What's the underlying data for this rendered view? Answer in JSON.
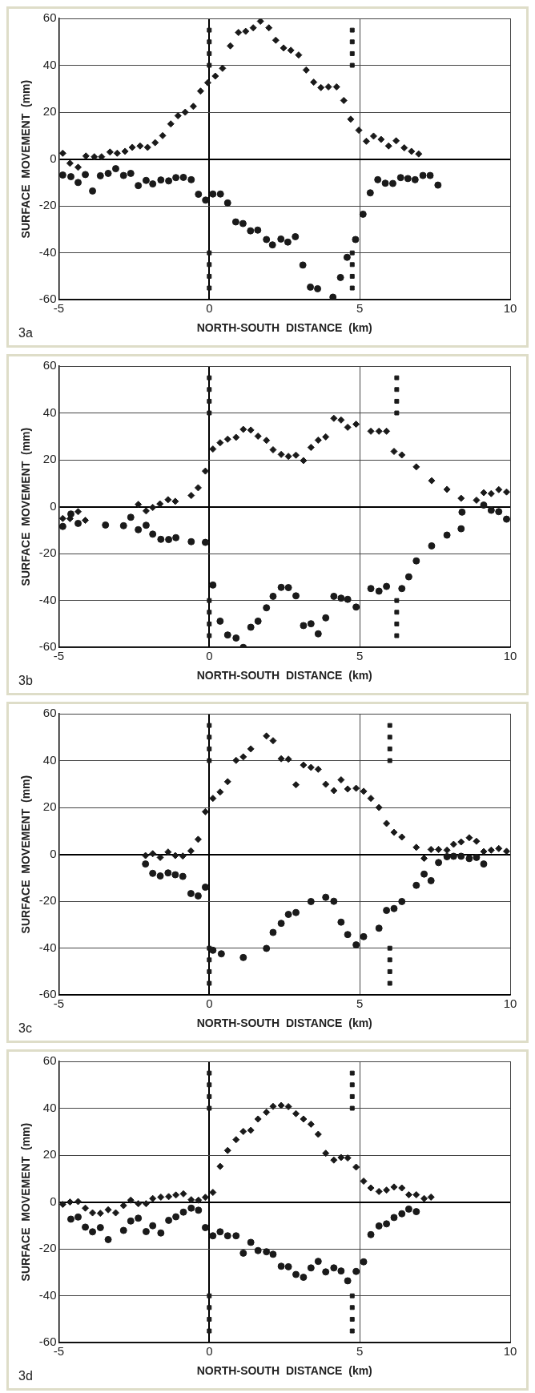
{
  "chart_data": [
    {
      "type": "scatter",
      "xlabel": "NORTH-SOUTH  DISTANCE  (km)",
      "ylabel": "SURFACE  MOVEMENT  (mm)",
      "xlim": [
        -5,
        10
      ],
      "xticks": [
        -5,
        0,
        5,
        10
      ],
      "ylim": [
        -60,
        60
      ],
      "yticks": [
        -60,
        -40,
        -20,
        0,
        20,
        40,
        60
      ],
      "grid": true,
      "annotations": [
        "3a"
      ],
      "series": [
        {
          "marker": "diamond",
          "color": "#1a1a1a",
          "x": [
            -4.87,
            -4.63,
            -4.36,
            -4.1,
            -3.82,
            -3.58,
            -3.3,
            -3.06,
            -2.8,
            -2.56,
            -2.3,
            -2.05,
            -1.8,
            -1.55,
            -1.28,
            -1.04,
            -0.8,
            -0.53,
            -0.29,
            -0.05,
            0.2,
            0.44,
            0.7,
            0.97,
            1.21,
            1.46,
            1.7,
            1.98,
            2.21,
            2.47,
            2.71,
            2.97,
            3.22,
            3.47,
            3.71,
            3.96,
            4.23,
            4.47,
            4.7,
            4.97,
            5.22,
            5.46,
            5.71,
            5.96,
            6.21,
            6.48,
            6.72,
            6.96
          ],
          "values": [
            2.5,
            -1.8,
            -3.5,
            1.3,
            1,
            1,
            3,
            2.5,
            3.3,
            5,
            5.6,
            5,
            7,
            10,
            15,
            18.5,
            20,
            22.5,
            29,
            32.6,
            35.4,
            38.7,
            48.3,
            54,
            54.5,
            56,
            58.8,
            56,
            50.7,
            47.4,
            46.4,
            44.4,
            38,
            32.8,
            30.5,
            30.8,
            30.8,
            25,
            17,
            12.3,
            7.6,
            9.8,
            8.4,
            5.6,
            7.8,
            4.8,
            3.3,
            2.2
          ]
        },
        {
          "marker": "circle",
          "color": "#1a1a1a",
          "x": [
            -4.87,
            -4.6,
            -4.36,
            -4.12,
            -3.88,
            -3.62,
            -3.36,
            -3.11,
            -2.85,
            -2.61,
            -2.36,
            -2.1,
            -1.88,
            -1.61,
            -1.35,
            -1.11,
            -0.86,
            -0.6,
            -0.36,
            -0.12,
            0.12,
            0.37,
            0.61,
            0.88,
            1.12,
            1.37,
            1.61,
            1.9,
            2.1,
            2.38,
            2.61,
            2.86,
            3.11,
            3.36,
            3.6,
            4.11,
            4.36,
            4.58,
            4.86,
            5.11,
            5.35,
            5.6,
            5.85,
            6.1,
            6.36,
            6.6,
            6.84,
            7.1,
            7.34,
            7.6
          ],
          "values": [
            -6.8,
            -7.5,
            -10,
            -6.6,
            -13.6,
            -7.1,
            -6.1,
            -4.1,
            -7,
            -6.1,
            -11.3,
            -9.1,
            -10.6,
            -8.9,
            -9.3,
            -7.9,
            -7.8,
            -8.8,
            -15,
            -17.5,
            -14.9,
            -14.9,
            -18.7,
            -26.8,
            -27.5,
            -30.6,
            -30.3,
            -34.3,
            -36.6,
            -34.1,
            -35.4,
            -33.1,
            -45.2,
            -54.6,
            -55.3,
            -58.9,
            -50.5,
            -41.9,
            -34.3,
            -23.5,
            -14.4,
            -8.8,
            -10.3,
            -10.4,
            -7.9,
            -8.3,
            -8.8,
            -7,
            -7,
            -11.1
          ]
        },
        {
          "marker": "square",
          "color": "#1a1a1a",
          "x": [
            0,
            0,
            0,
            0,
            0,
            0,
            0,
            0,
            4.75,
            4.75,
            4.75,
            4.75,
            4.75,
            4.75,
            4.75,
            4.75
          ],
          "values": [
            55,
            50,
            45,
            40,
            -40,
            -45,
            -50,
            -55,
            55,
            50,
            45,
            40,
            -40,
            -45,
            -50,
            -55
          ]
        }
      ]
    },
    {
      "type": "scatter",
      "xlabel": "NORTH-SOUTH  DISTANCE  (km)",
      "ylabel": "SURFACE  MOVEMENT  (mm)",
      "xlim": [
        -5,
        10
      ],
      "xticks": [
        -5,
        0,
        5,
        10
      ],
      "ylim": [
        -60,
        60
      ],
      "yticks": [
        -60,
        -40,
        -20,
        0,
        20,
        40,
        60
      ],
      "grid": true,
      "annotations": [
        "3b"
      ],
      "series": [
        {
          "marker": "diamond",
          "color": "#1a1a1a",
          "x": [
            -4.87,
            -4.63,
            -4.36,
            -4.12,
            -2.36,
            -2.1,
            -1.88,
            -1.64,
            -1.37,
            -1.13,
            -0.6,
            -0.37,
            -0.13,
            0.12,
            0.36,
            0.61,
            0.89,
            1.13,
            1.38,
            1.62,
            1.9,
            2.12,
            2.39,
            2.63,
            2.88,
            3.13,
            3.38,
            3.62,
            3.87,
            4.14,
            4.38,
            4.6,
            4.88,
            5.37,
            5.64,
            5.89,
            6.14,
            6.4,
            6.88,
            7.39,
            7.9,
            8.37,
            8.88,
            9.12,
            9.37,
            9.62,
            9.88
          ],
          "values": [
            -5,
            -5.1,
            -2.1,
            -5.8,
            1,
            -1.8,
            -0.3,
            1.2,
            3,
            2.3,
            4.8,
            8.1,
            15.2,
            24.6,
            27.3,
            28.8,
            29.6,
            33,
            32.7,
            30.1,
            28.3,
            24.3,
            22.3,
            21.5,
            22,
            19.7,
            25.3,
            28.4,
            29.8,
            37.7,
            37,
            33.9,
            35.2,
            32.2,
            32.2,
            32.2,
            23.6,
            22.1,
            17,
            11.1,
            7.4,
            3.6,
            2.8,
            6,
            5.6,
            7.3,
            6.3
          ]
        },
        {
          "marker": "circle",
          "color": "#1a1a1a",
          "x": [
            -4.87,
            -4.6,
            -4.36,
            -3.45,
            -2.85,
            -2.61,
            -2.36,
            -2.1,
            -1.88,
            -1.61,
            -1.35,
            -1.11,
            -0.6,
            -0.13,
            0.12,
            0.36,
            0.61,
            0.89,
            1.13,
            1.38,
            1.62,
            1.9,
            2.12,
            2.39,
            2.63,
            2.88,
            3.13,
            3.38,
            3.62,
            3.87,
            4.14,
            4.38,
            4.6,
            4.88,
            5.37,
            5.64,
            5.89,
            6.4,
            6.63,
            6.88,
            7.39,
            7.9,
            8.37,
            8.4,
            9.12,
            9.37,
            9.62,
            9.88
          ],
          "values": [
            -8.4,
            -3.1,
            -7.1,
            -7.8,
            -8.1,
            -4.5,
            -9.8,
            -7.9,
            -11.7,
            -13.9,
            -14,
            -13.2,
            -14.9,
            -15.2,
            -33.4,
            -48.8,
            -54.7,
            -56,
            -60,
            -51.4,
            -48.8,
            -43.1,
            -38.2,
            -34.4,
            -34.5,
            -38,
            -50.7,
            -49.9,
            -54.2,
            -47.4,
            -38.2,
            -39,
            -39.5,
            -42.8,
            -34.9,
            -36,
            -34,
            -34.9,
            -29.9,
            -23.1,
            -16.7,
            -12.1,
            -9.4,
            -2.3,
            0.7,
            -1.5,
            -2.1,
            -5.3
          ]
        },
        {
          "marker": "square",
          "color": "#1a1a1a",
          "x": [
            0,
            0,
            0,
            0,
            0,
            0,
            0,
            0,
            6.23,
            6.23,
            6.23,
            6.23,
            6.23,
            6.23,
            6.23,
            6.23
          ],
          "values": [
            55,
            50,
            45,
            40,
            -40,
            -45,
            -50,
            -55,
            55,
            50,
            45,
            40,
            -40,
            -45,
            -50,
            -55
          ]
        }
      ]
    },
    {
      "type": "scatter",
      "xlabel": "NORTH-SOUTH  DISTANCE  (km)",
      "ylabel": "SURFACE  MOVEMENT  (mm)",
      "xlim": [
        -5,
        10
      ],
      "xticks": [
        -5,
        0,
        5,
        10
      ],
      "ylim": [
        -60,
        60
      ],
      "yticks": [
        -60,
        -40,
        -20,
        0,
        20,
        40,
        60
      ],
      "grid": true,
      "annotations": [
        "3c"
      ],
      "series": [
        {
          "marker": "diamond",
          "color": "#1a1a1a",
          "x": [
            -2.12,
            -1.88,
            -1.63,
            -1.37,
            -1.13,
            -0.88,
            -0.61,
            -0.37,
            -0.13,
            0.12,
            0.36,
            0.61,
            0.89,
            1.13,
            1.38,
            1.9,
            2.12,
            2.39,
            2.63,
            2.88,
            3.13,
            3.38,
            3.62,
            3.87,
            4.14,
            4.38,
            4.6,
            4.88,
            5.13,
            5.37,
            5.64,
            5.89,
            6.14,
            6.4,
            6.88,
            7.14,
            7.37,
            7.62,
            7.9,
            8.12,
            8.37,
            8.64,
            8.88,
            9.12,
            9.37,
            9.62,
            9.88
          ],
          "values": [
            -0.5,
            0.3,
            -1.3,
            1,
            -0.5,
            -0.7,
            1.5,
            6.4,
            18.2,
            23.9,
            26.6,
            31,
            40.1,
            41.6,
            45,
            50.5,
            48.5,
            40.8,
            40.6,
            29.7,
            38.1,
            37.1,
            36.3,
            29.9,
            27.2,
            31.8,
            27.9,
            28.2,
            26.9,
            23.9,
            20,
            13.2,
            9.4,
            7.4,
            3,
            -1.7,
            2.1,
            2.1,
            1.8,
            4.3,
            5.3,
            7.1,
            5.6,
            1.2,
            1.8,
            2.5,
            1.3
          ]
        },
        {
          "marker": "circle",
          "color": "#1a1a1a",
          "x": [
            -2.12,
            -1.88,
            -1.63,
            -1.37,
            -1.13,
            -0.88,
            -0.61,
            -0.37,
            -0.13,
            0.12,
            0.4,
            1.13,
            1.9,
            2.12,
            2.39,
            2.63,
            2.88,
            3.38,
            3.87,
            4.14,
            4.38,
            4.6,
            4.88,
            5.13,
            5.64,
            5.89,
            6.14,
            6.4,
            6.88,
            7.14,
            7.37,
            7.62,
            7.9,
            8.12,
            8.37,
            8.64,
            8.88,
            9.12
          ],
          "values": [
            -4.1,
            -8.1,
            -9.2,
            -7.9,
            -8.7,
            -9.4,
            -16.7,
            -17.7,
            -14,
            -40.9,
            -42.4,
            -44,
            -40.1,
            -33.3,
            -29.4,
            -25.6,
            -24.8,
            -20.1,
            -18.3,
            -20,
            -28.9,
            -34.2,
            -38.6,
            -35.1,
            -31.5,
            -23.9,
            -23.1,
            -20.1,
            -13.2,
            -8.4,
            -11.2,
            -3.5,
            -1,
            -0.8,
            -0.8,
            -1.8,
            -1.3,
            -4.1
          ]
        },
        {
          "marker": "square",
          "color": "#1a1a1a",
          "x": [
            0,
            0,
            0,
            0,
            0,
            0,
            0,
            0,
            6,
            6,
            6,
            6,
            6,
            6,
            6,
            6
          ],
          "values": [
            55,
            50,
            45,
            40,
            -40,
            -45,
            -50,
            -55,
            55,
            50,
            45,
            40,
            -40,
            -45,
            -50,
            -55
          ]
        }
      ]
    },
    {
      "type": "scatter",
      "xlabel": "NORTH-SOUTH  DISTANCE  (km)",
      "ylabel": "SURFACE  MOVEMENT  (mm)",
      "xlim": [
        -5,
        10
      ],
      "xticks": [
        -5,
        0,
        5,
        10
      ],
      "ylim": [
        -60,
        60
      ],
      "yticks": [
        -60,
        -40,
        -20,
        0,
        20,
        40,
        60
      ],
      "grid": true,
      "annotations": [
        "3d"
      ],
      "series": [
        {
          "marker": "diamond",
          "color": "#1a1a1a",
          "x": [
            -4.87,
            -4.63,
            -4.36,
            -4.12,
            -3.88,
            -3.62,
            -3.36,
            -3.11,
            -2.85,
            -2.61,
            -2.36,
            -2.1,
            -1.88,
            -1.61,
            -1.35,
            -1.11,
            -0.86,
            -0.6,
            -0.36,
            -0.13,
            0.12,
            0.36,
            0.61,
            0.89,
            1.13,
            1.38,
            1.62,
            1.9,
            2.12,
            2.39,
            2.63,
            2.88,
            3.13,
            3.38,
            3.62,
            3.87,
            4.14,
            4.38,
            4.6,
            4.88,
            5.13,
            5.37,
            5.64,
            5.89,
            6.14,
            6.4,
            6.63,
            6.88,
            7.14,
            7.37
          ],
          "values": [
            -1,
            0,
            0.2,
            -2.6,
            -4.6,
            -4.8,
            -3.3,
            -4.6,
            -1.5,
            0.8,
            -0.7,
            -0.7,
            1.5,
            2.1,
            2.3,
            3,
            3.5,
            1,
            0.8,
            2,
            4.1,
            15.2,
            22,
            26.6,
            30.1,
            30.6,
            35.4,
            38.3,
            40.8,
            41.2,
            40.7,
            37.7,
            35.4,
            33.2,
            28.9,
            20.8,
            17.9,
            19,
            18.8,
            14.9,
            8.9,
            6,
            4.5,
            5.1,
            6.4,
            6,
            3.1,
            3.1,
            1.5,
            2.1
          ]
        },
        {
          "marker": "circle",
          "color": "#1a1a1a",
          "x": [
            -4.6,
            -4.36,
            -4.12,
            -3.88,
            -3.62,
            -3.36,
            -2.85,
            -2.61,
            -2.36,
            -2.1,
            -1.88,
            -1.61,
            -1.35,
            -1.11,
            -0.86,
            -0.6,
            -0.36,
            -0.13,
            0.12,
            0.36,
            0.61,
            0.89,
            1.13,
            1.38,
            1.62,
            1.9,
            2.12,
            2.39,
            2.63,
            2.88,
            3.13,
            3.38,
            3.62,
            3.87,
            4.14,
            4.38,
            4.6,
            4.88,
            5.13,
            5.37,
            5.64,
            5.89,
            6.14,
            6.4,
            6.63,
            6.88
          ],
          "values": [
            -7.3,
            -6.4,
            -10.7,
            -12.7,
            -10.9,
            -16,
            -12.1,
            -8.1,
            -6.9,
            -12.6,
            -10.1,
            -13.2,
            -7.8,
            -6.3,
            -4.3,
            -2.6,
            -3.5,
            -10.9,
            -14.4,
            -12.7,
            -14.4,
            -14.4,
            -21.8,
            -17.2,
            -20.7,
            -21.2,
            -22.3,
            -27.4,
            -27.6,
            -30.9,
            -32.1,
            -28.1,
            -25.3,
            -29.8,
            -28.1,
            -29.4,
            -33.6,
            -29.6,
            -25.5,
            -13.9,
            -10.2,
            -9.3,
            -6.6,
            -5,
            -3,
            -4.1
          ]
        },
        {
          "marker": "square",
          "color": "#1a1a1a",
          "x": [
            0,
            0,
            0,
            0,
            0,
            0,
            0,
            0,
            4.75,
            4.75,
            4.75,
            4.75,
            4.75,
            4.75,
            4.75,
            4.75
          ],
          "values": [
            55,
            50,
            45,
            40,
            -40,
            -45,
            -50,
            -55,
            55,
            50,
            45,
            40,
            -40,
            -45,
            -50,
            -55
          ]
        }
      ]
    }
  ]
}
